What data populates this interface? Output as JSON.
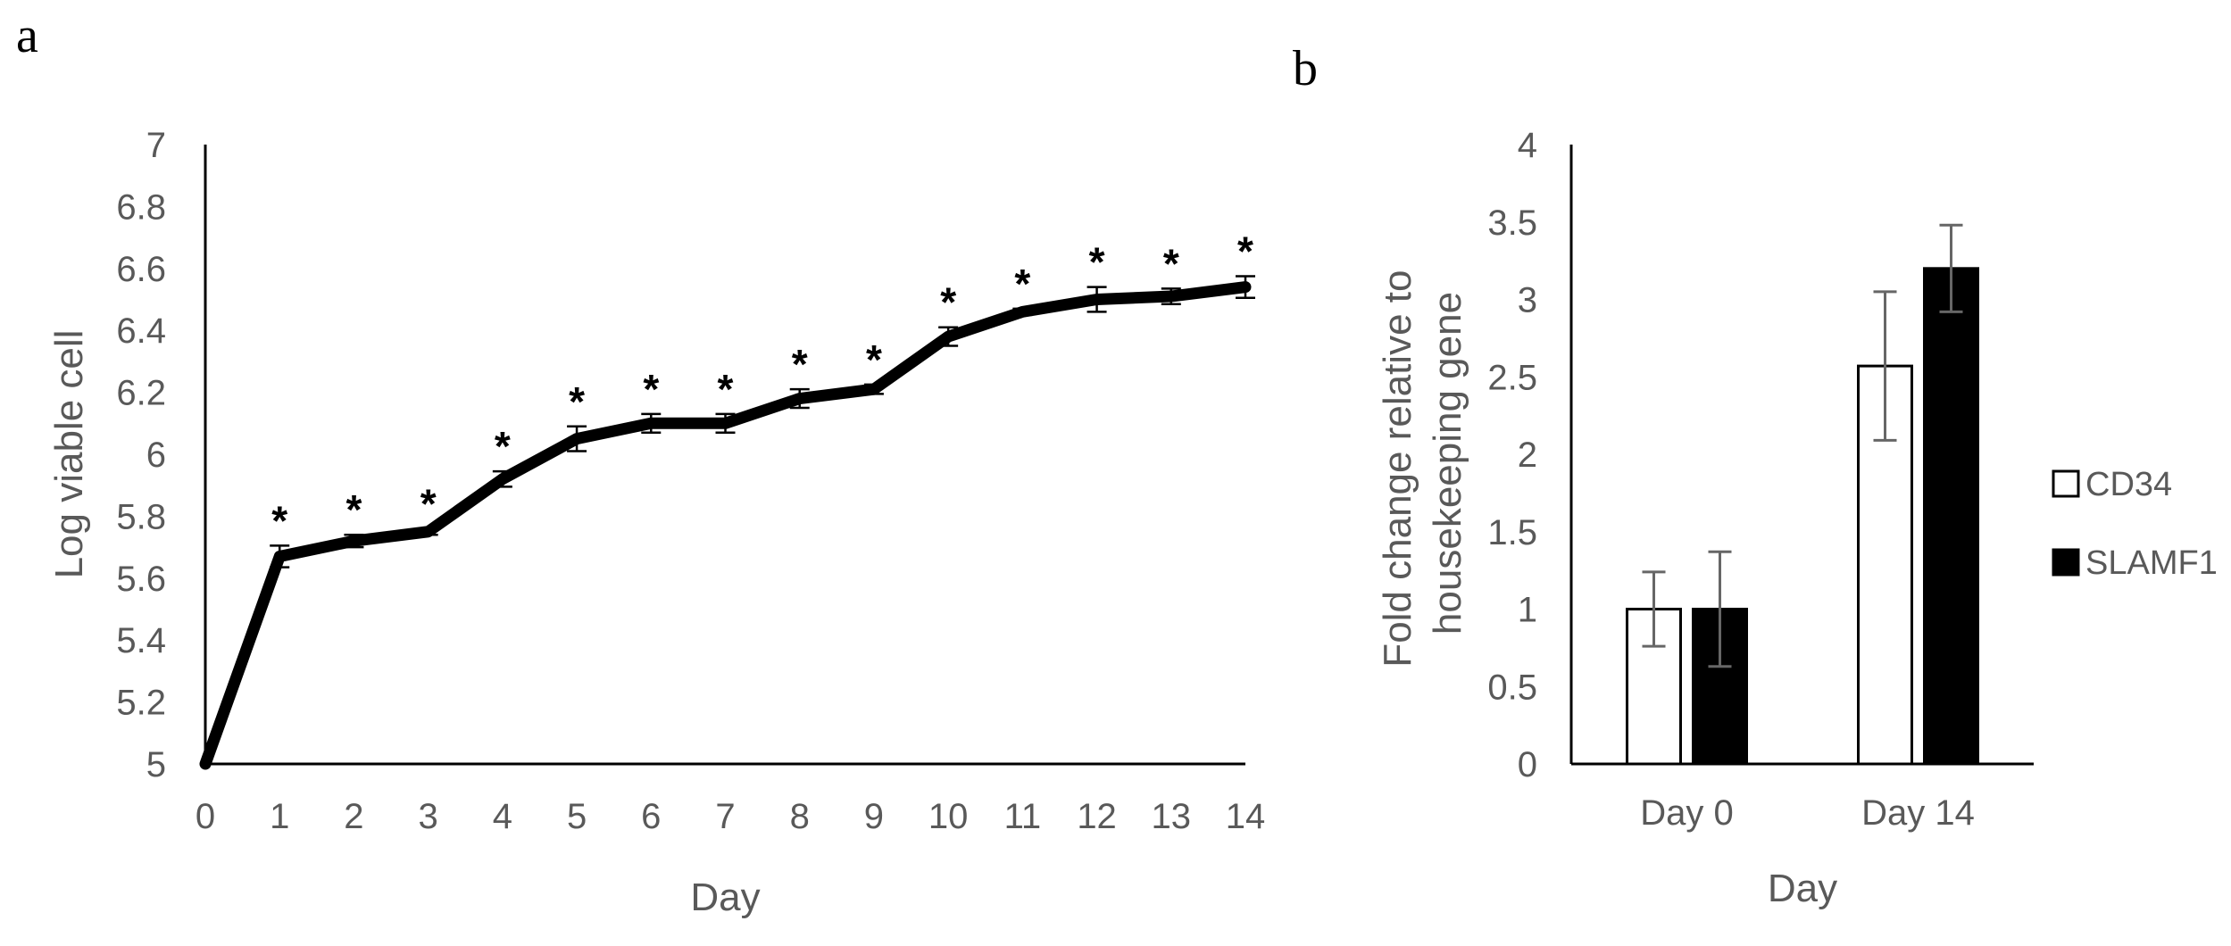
{
  "chart_data": [
    {
      "panel": "a",
      "type": "line",
      "title": "",
      "xlabel": "Day",
      "ylabel": "Log viable cell",
      "x": [
        0,
        1,
        2,
        3,
        4,
        5,
        6,
        7,
        8,
        9,
        10,
        11,
        12,
        13,
        14
      ],
      "xticks": [
        "0",
        "1",
        "2",
        "3",
        "4",
        "5",
        "6",
        "7",
        "8",
        "9",
        "10",
        "11",
        "12",
        "13",
        "14"
      ],
      "xlim": [
        0,
        14
      ],
      "yticks": [
        "5",
        "5.2",
        "5.4",
        "5.6",
        "5.8",
        "6",
        "6.2",
        "6.4",
        "6.6",
        "6.8",
        "7"
      ],
      "ylim": [
        5,
        7
      ],
      "series": [
        {
          "name": "Log viable cell",
          "values": [
            5.0,
            5.67,
            5.72,
            5.75,
            5.92,
            6.05,
            6.1,
            6.1,
            6.18,
            6.21,
            6.38,
            6.46,
            6.5,
            6.51,
            6.54
          ],
          "error": [
            0,
            0.035,
            0.02,
            0.01,
            0.025,
            0.04,
            0.03,
            0.03,
            0.03,
            0.015,
            0.03,
            0.01,
            0.04,
            0.025,
            0.035
          ],
          "significance": [
            "",
            "*",
            "*",
            "*",
            "*",
            "*",
            "*",
            "*",
            "*",
            "*",
            "*",
            "*",
            "*",
            "*",
            "*"
          ]
        }
      ],
      "color": "#000000",
      "grid": false
    },
    {
      "panel": "b",
      "type": "bar",
      "title": "",
      "xlabel": "Day",
      "ylabel_lines": [
        "Fold change relative to",
        "housekeeping gene"
      ],
      "categories": [
        "Day 0",
        "Day 14"
      ],
      "yticks": [
        "0",
        "0.5",
        "1",
        "1.5",
        "2",
        "2.5",
        "3",
        "3.5",
        "4"
      ],
      "ylim": [
        0,
        4
      ],
      "series": [
        {
          "name": "CD34",
          "values": [
            1.0,
            2.57
          ],
          "error": [
            0.24,
            0.48
          ],
          "color": "#ffffff"
        },
        {
          "name": "SLAMF1",
          "values": [
            1.0,
            3.2
          ],
          "error": [
            0.37,
            0.28
          ],
          "color": "#000000"
        }
      ],
      "legend": "right",
      "grid": false
    }
  ]
}
